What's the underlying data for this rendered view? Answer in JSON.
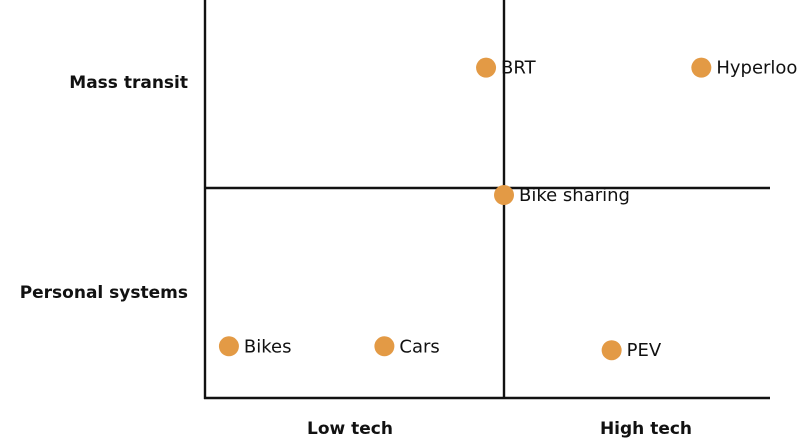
{
  "diagram": {
    "type": "quadrant",
    "rows": [
      {
        "id": "mass",
        "label": "Mass transit"
      },
      {
        "id": "personal",
        "label": "Personal systems"
      }
    ],
    "columns": [
      {
        "id": "low",
        "label": "Low tech"
      },
      {
        "id": "high",
        "label": "High tech"
      }
    ],
    "point_color": "#E39A45",
    "points": [
      {
        "label": "BRT",
        "tech": 0.47,
        "scale": 0.83
      },
      {
        "label": "Hyperloop",
        "tech": 0.83,
        "scale": 0.83
      },
      {
        "label": "Bike sharing",
        "tech": 0.5,
        "scale": 0.51
      },
      {
        "label": "Bikes",
        "tech": 0.04,
        "scale": 0.13
      },
      {
        "label": "Cars",
        "tech": 0.3,
        "scale": 0.13
      },
      {
        "label": "PEV",
        "tech": 0.68,
        "scale": 0.12
      }
    ]
  }
}
